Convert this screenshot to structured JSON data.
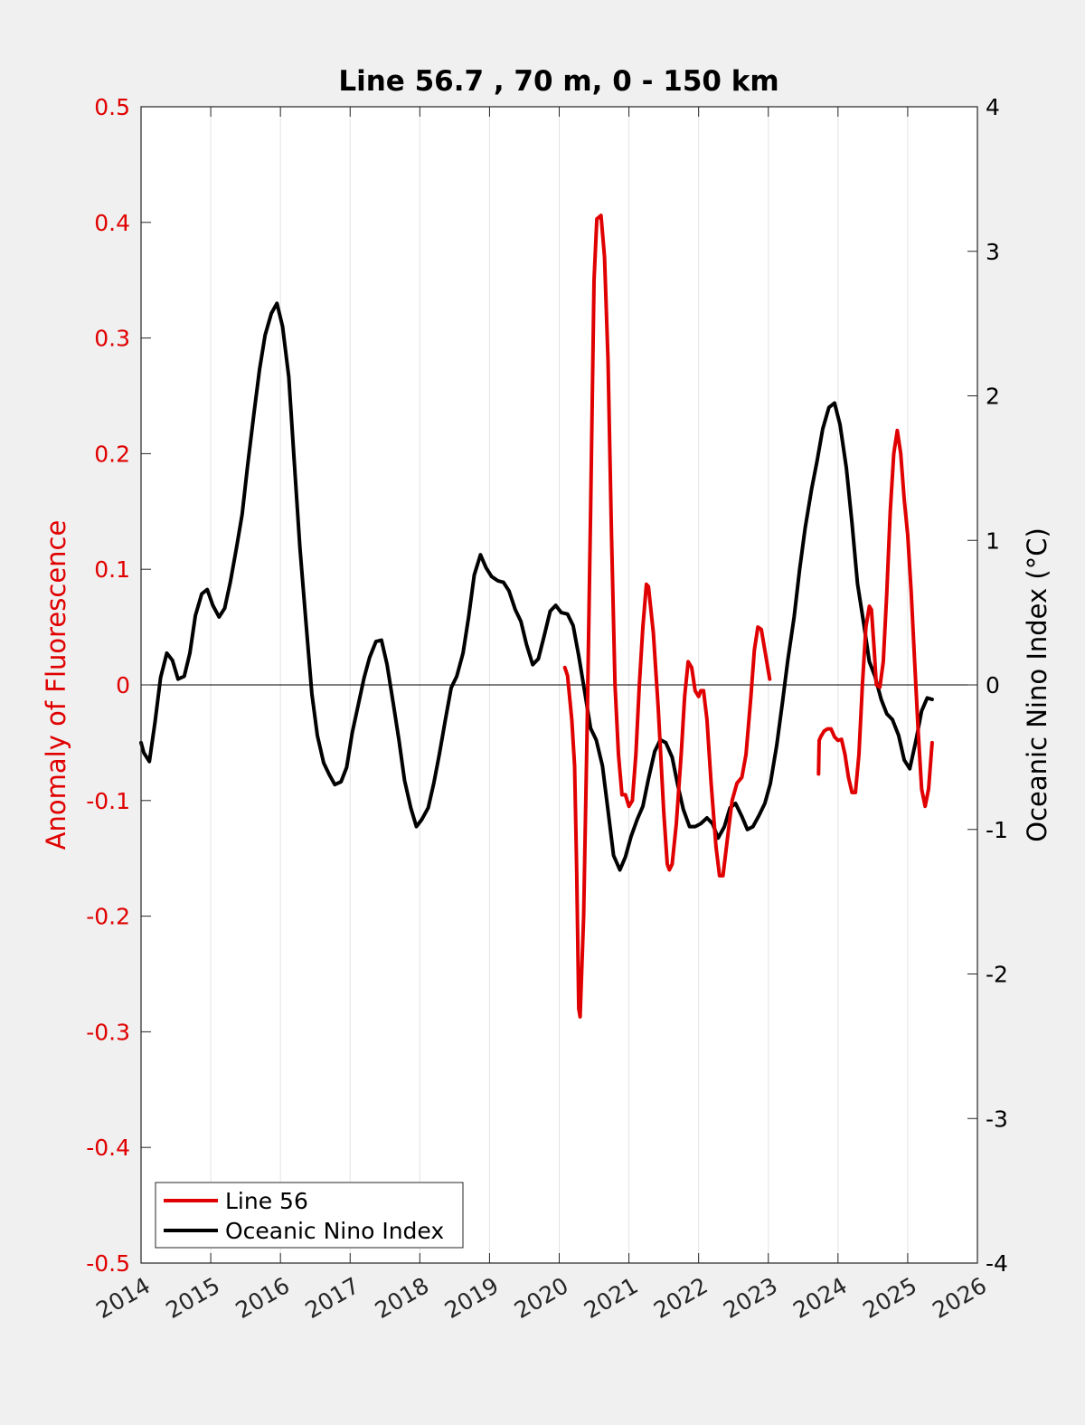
{
  "colors": {
    "series_left": "#e00000",
    "series_right": "#000000",
    "background": "#f0f0f0",
    "plot_bg": "#ffffff"
  },
  "chart_data": {
    "type": "line",
    "title": "Line 56.7 , 70 m, 0 - 150 km",
    "xlabel": "",
    "ylabel_left": "Anomaly of Fluorescence",
    "ylabel_right": "Oceanic Nino Index (°C)",
    "xlim": [
      2014,
      2026
    ],
    "ylim_left": [
      -0.5,
      0.5
    ],
    "ylim_right": [
      -4,
      4
    ],
    "x_ticks": [
      2014,
      2015,
      2016,
      2017,
      2018,
      2019,
      2020,
      2021,
      2022,
      2023,
      2024,
      2025,
      2026
    ],
    "x_tick_labels": [
      "2014",
      "2015",
      "2016",
      "2017",
      "2018",
      "2019",
      "2020",
      "2021",
      "2022",
      "2023",
      "2024",
      "2025",
      "2026"
    ],
    "y_left_ticks": [
      -0.5,
      -0.4,
      -0.3,
      -0.2,
      -0.1,
      0,
      0.1,
      0.2,
      0.3,
      0.4,
      0.5
    ],
    "y_left_tick_labels": [
      "-0.5",
      "-0.4",
      "-0.3",
      "-0.2",
      "-0.1",
      "0",
      "0.1",
      "0.2",
      "0.3",
      "0.4",
      "0.5"
    ],
    "y_right_ticks": [
      -4,
      -3,
      -2,
      -1,
      0,
      1,
      2,
      3,
      4
    ],
    "y_right_tick_labels": [
      "-4",
      "-3",
      "-2",
      "-1",
      "0",
      "1",
      "2",
      "3",
      "4"
    ],
    "grid": "vertical",
    "legend": {
      "placement": "bottom-left",
      "entries": [
        "Line 56",
        "Oceanic Nino Index"
      ]
    },
    "series": [
      {
        "name": "Line 56",
        "axis": "left",
        "segments": [
          [
            [
              2020.08,
              0.015
            ],
            [
              2020.12,
              0.008
            ],
            [
              2020.18,
              -0.03
            ],
            [
              2020.22,
              -0.07
            ],
            [
              2020.25,
              -0.16
            ],
            [
              2020.28,
              -0.28
            ],
            [
              2020.3,
              -0.287
            ],
            [
              2020.35,
              -0.2
            ],
            [
              2020.4,
              -0.04
            ],
            [
              2020.45,
              0.15
            ],
            [
              2020.5,
              0.35
            ],
            [
              2020.54,
              0.403
            ],
            [
              2020.6,
              0.406
            ],
            [
              2020.65,
              0.37
            ],
            [
              2020.7,
              0.28
            ],
            [
              2020.75,
              0.13
            ],
            [
              2020.8,
              0.0
            ],
            [
              2020.85,
              -0.06
            ],
            [
              2020.9,
              -0.095
            ],
            [
              2020.95,
              -0.095
            ],
            [
              2021.0,
              -0.105
            ],
            [
              2021.05,
              -0.1
            ],
            [
              2021.1,
              -0.06
            ],
            [
              2021.15,
              0.0
            ],
            [
              2021.2,
              0.05
            ],
            [
              2021.25,
              0.087
            ],
            [
              2021.28,
              0.085
            ],
            [
              2021.35,
              0.045
            ],
            [
              2021.42,
              -0.02
            ],
            [
              2021.5,
              -0.11
            ],
            [
              2021.55,
              -0.155
            ],
            [
              2021.58,
              -0.16
            ],
            [
              2021.62,
              -0.155
            ],
            [
              2021.68,
              -0.12
            ],
            [
              2021.75,
              -0.06
            ],
            [
              2021.8,
              -0.01
            ],
            [
              2021.85,
              0.02
            ],
            [
              2021.9,
              0.015
            ],
            [
              2021.95,
              -0.005
            ],
            [
              2022.0,
              -0.01
            ],
            [
              2022.03,
              -0.005
            ],
            [
              2022.07,
              -0.005
            ],
            [
              2022.12,
              -0.03
            ],
            [
              2022.18,
              -0.085
            ],
            [
              2022.25,
              -0.14
            ],
            [
              2022.3,
              -0.165
            ],
            [
              2022.35,
              -0.165
            ],
            [
              2022.42,
              -0.13
            ],
            [
              2022.48,
              -0.1
            ],
            [
              2022.55,
              -0.085
            ],
            [
              2022.62,
              -0.08
            ],
            [
              2022.68,
              -0.06
            ],
            [
              2022.75,
              -0.01
            ],
            [
              2022.8,
              0.03
            ],
            [
              2022.85,
              0.05
            ],
            [
              2022.9,
              0.048
            ],
            [
              2022.95,
              0.03
            ],
            [
              2023.02,
              0.005
            ]
          ],
          [
            [
              2023.72,
              -0.077
            ],
            [
              2023.73,
              -0.048
            ],
            [
              2023.75,
              -0.045
            ],
            [
              2023.8,
              -0.04
            ],
            [
              2023.85,
              -0.038
            ],
            [
              2023.9,
              -0.038
            ],
            [
              2023.95,
              -0.045
            ],
            [
              2024.0,
              -0.048
            ],
            [
              2024.05,
              -0.047
            ],
            [
              2024.1,
              -0.06
            ],
            [
              2024.15,
              -0.08
            ],
            [
              2024.2,
              -0.093
            ],
            [
              2024.25,
              -0.093
            ],
            [
              2024.3,
              -0.06
            ],
            [
              2024.35,
              0.0
            ],
            [
              2024.4,
              0.05
            ],
            [
              2024.45,
              0.068
            ],
            [
              2024.48,
              0.065
            ],
            [
              2024.52,
              0.03
            ],
            [
              2024.55,
              0.0
            ],
            [
              2024.6,
              -0.002
            ],
            [
              2024.65,
              0.02
            ],
            [
              2024.7,
              0.08
            ],
            [
              2024.75,
              0.15
            ],
            [
              2024.8,
              0.2
            ],
            [
              2024.85,
              0.22
            ],
            [
              2024.9,
              0.2
            ],
            [
              2024.95,
              0.16
            ],
            [
              2025.0,
              0.13
            ],
            [
              2025.05,
              0.08
            ],
            [
              2025.1,
              0.02
            ],
            [
              2025.15,
              -0.04
            ],
            [
              2025.2,
              -0.09
            ],
            [
              2025.25,
              -0.105
            ],
            [
              2025.3,
              -0.09
            ],
            [
              2025.35,
              -0.05
            ]
          ]
        ]
      },
      {
        "name": "Oceanic Nino Index",
        "axis": "right",
        "segments": [
          [
            [
              2014.0,
              -0.4
            ],
            [
              2014.04,
              -0.47
            ],
            [
              2014.12,
              -0.53
            ],
            [
              2014.2,
              -0.26
            ],
            [
              2014.28,
              0.05
            ],
            [
              2014.37,
              0.22
            ],
            [
              2014.45,
              0.17
            ],
            [
              2014.53,
              0.04
            ],
            [
              2014.62,
              0.06
            ],
            [
              2014.7,
              0.22
            ],
            [
              2014.78,
              0.48
            ],
            [
              2014.87,
              0.63
            ],
            [
              2014.95,
              0.66
            ],
            [
              2015.03,
              0.55
            ],
            [
              2015.12,
              0.47
            ],
            [
              2015.2,
              0.53
            ],
            [
              2015.28,
              0.71
            ],
            [
              2015.37,
              0.95
            ],
            [
              2015.45,
              1.18
            ],
            [
              2015.53,
              1.52
            ],
            [
              2015.62,
              1.88
            ],
            [
              2015.7,
              2.18
            ],
            [
              2015.78,
              2.42
            ],
            [
              2015.87,
              2.57
            ],
            [
              2015.95,
              2.64
            ],
            [
              2016.03,
              2.48
            ],
            [
              2016.12,
              2.13
            ],
            [
              2016.2,
              1.53
            ],
            [
              2016.28,
              0.95
            ],
            [
              2016.37,
              0.41
            ],
            [
              2016.45,
              -0.06
            ],
            [
              2016.53,
              -0.35
            ],
            [
              2016.62,
              -0.54
            ],
            [
              2016.7,
              -0.62
            ],
            [
              2016.78,
              -0.69
            ],
            [
              2016.87,
              -0.67
            ],
            [
              2016.95,
              -0.57
            ],
            [
              2017.03,
              -0.33
            ],
            [
              2017.12,
              -0.13
            ],
            [
              2017.2,
              0.05
            ],
            [
              2017.28,
              0.19
            ],
            [
              2017.37,
              0.3
            ],
            [
              2017.45,
              0.31
            ],
            [
              2017.53,
              0.14
            ],
            [
              2017.62,
              -0.13
            ],
            [
              2017.7,
              -0.38
            ],
            [
              2017.78,
              -0.66
            ],
            [
              2017.87,
              -0.85
            ],
            [
              2017.95,
              -0.98
            ],
            [
              2018.03,
              -0.93
            ],
            [
              2018.12,
              -0.85
            ],
            [
              2018.2,
              -0.68
            ],
            [
              2018.28,
              -0.48
            ],
            [
              2018.37,
              -0.23
            ],
            [
              2018.45,
              -0.02
            ],
            [
              2018.53,
              0.06
            ],
            [
              2018.62,
              0.22
            ],
            [
              2018.7,
              0.47
            ],
            [
              2018.78,
              0.76
            ],
            [
              2018.87,
              0.9
            ],
            [
              2018.95,
              0.81
            ],
            [
              2019.03,
              0.75
            ],
            [
              2019.12,
              0.72
            ],
            [
              2019.2,
              0.71
            ],
            [
              2019.28,
              0.65
            ],
            [
              2019.37,
              0.52
            ],
            [
              2019.45,
              0.44
            ],
            [
              2019.53,
              0.28
            ],
            [
              2019.62,
              0.14
            ],
            [
              2019.7,
              0.18
            ],
            [
              2019.78,
              0.33
            ],
            [
              2019.87,
              0.51
            ],
            [
              2019.95,
              0.55
            ],
            [
              2020.03,
              0.5
            ],
            [
              2020.12,
              0.49
            ],
            [
              2020.2,
              0.41
            ],
            [
              2020.28,
              0.2
            ],
            [
              2020.37,
              -0.06
            ],
            [
              2020.45,
              -0.3
            ],
            [
              2020.53,
              -0.38
            ],
            [
              2020.62,
              -0.56
            ],
            [
              2020.7,
              -0.87
            ],
            [
              2020.78,
              -1.18
            ],
            [
              2020.87,
              -1.28
            ],
            [
              2020.95,
              -1.19
            ],
            [
              2021.03,
              -1.05
            ],
            [
              2021.12,
              -0.93
            ],
            [
              2021.2,
              -0.84
            ],
            [
              2021.28,
              -0.65
            ],
            [
              2021.37,
              -0.46
            ],
            [
              2021.45,
              -0.38
            ],
            [
              2021.53,
              -0.4
            ],
            [
              2021.62,
              -0.5
            ],
            [
              2021.7,
              -0.69
            ],
            [
              2021.78,
              -0.86
            ],
            [
              2021.87,
              -0.98
            ],
            [
              2021.95,
              -0.98
            ],
            [
              2022.03,
              -0.96
            ],
            [
              2022.12,
              -0.92
            ],
            [
              2022.2,
              -0.96
            ],
            [
              2022.28,
              -1.06
            ],
            [
              2022.37,
              -0.98
            ],
            [
              2022.45,
              -0.85
            ],
            [
              2022.53,
              -0.82
            ],
            [
              2022.62,
              -0.91
            ],
            [
              2022.7,
              -1.0
            ],
            [
              2022.78,
              -0.98
            ],
            [
              2022.87,
              -0.9
            ],
            [
              2022.95,
              -0.82
            ],
            [
              2023.03,
              -0.68
            ],
            [
              2023.12,
              -0.42
            ],
            [
              2023.2,
              -0.13
            ],
            [
              2023.28,
              0.17
            ],
            [
              2023.37,
              0.47
            ],
            [
              2023.45,
              0.8
            ],
            [
              2023.53,
              1.09
            ],
            [
              2023.62,
              1.35
            ],
            [
              2023.7,
              1.55
            ],
            [
              2023.78,
              1.77
            ],
            [
              2023.87,
              1.92
            ],
            [
              2023.95,
              1.95
            ],
            [
              2024.03,
              1.8
            ],
            [
              2024.12,
              1.5
            ],
            [
              2024.2,
              1.12
            ],
            [
              2024.28,
              0.7
            ],
            [
              2024.37,
              0.42
            ],
            [
              2024.45,
              0.16
            ],
            [
              2024.53,
              0.06
            ],
            [
              2024.62,
              -0.1
            ],
            [
              2024.7,
              -0.2
            ],
            [
              2024.78,
              -0.24
            ],
            [
              2024.87,
              -0.35
            ],
            [
              2024.95,
              -0.52
            ],
            [
              2025.03,
              -0.58
            ],
            [
              2025.12,
              -0.38
            ],
            [
              2025.2,
              -0.18
            ],
            [
              2025.28,
              -0.09
            ],
            [
              2025.35,
              -0.1
            ]
          ]
        ]
      }
    ]
  }
}
